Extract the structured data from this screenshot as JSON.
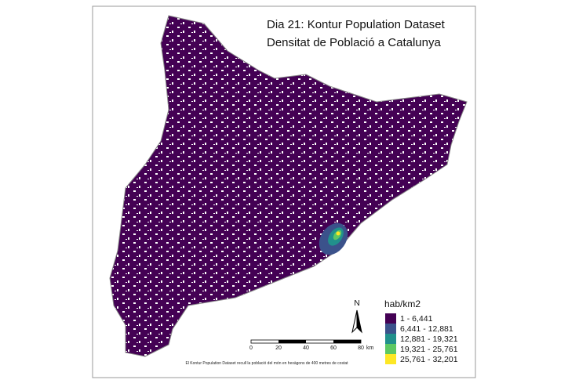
{
  "title": {
    "line1": "Dia 21: Kontur Population Dataset",
    "line2": "Densitat de Població a Catalunya"
  },
  "legend": {
    "title": "hab/km2",
    "items": [
      {
        "label": "1 - 6,441",
        "color": "#440154"
      },
      {
        "label": "6,441 - 12,881",
        "color": "#3b528b"
      },
      {
        "label": "12,881 - 19,321",
        "color": "#21908c"
      },
      {
        "label": "19,321 - 25,761",
        "color": "#5dc863"
      },
      {
        "label": "25,761 - 32,201",
        "color": "#fde725"
      }
    ]
  },
  "north_arrow": "N",
  "scale_bar": {
    "ticks": [
      "0",
      "20",
      "40",
      "60",
      "80"
    ],
    "unit": "km"
  },
  "caption": "El Kontur Population Dataset recull la població del món en hexàgons de 400 metres de costat"
}
